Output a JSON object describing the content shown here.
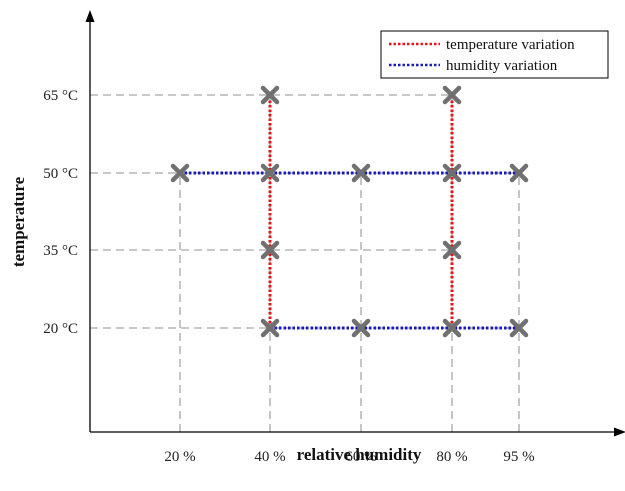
{
  "chart_data": {
    "type": "scatter",
    "xlabel": "relative humidity",
    "ylabel": "temperature",
    "x_ticks": [
      {
        "value": 20,
        "label": "20 %"
      },
      {
        "value": 40,
        "label": "40 %"
      },
      {
        "value": 60,
        "label": "60 %"
      },
      {
        "value": 80,
        "label": "80 %"
      },
      {
        "value": 95,
        "label": "95 %"
      }
    ],
    "y_ticks": [
      {
        "value": 20,
        "label": "20 °C"
      },
      {
        "value": 35,
        "label": "35 °C"
      },
      {
        "value": 50,
        "label": "50 °C"
      },
      {
        "value": 65,
        "label": "65 °C"
      }
    ],
    "points": [
      [
        40,
        65
      ],
      [
        80,
        65
      ],
      [
        20,
        50
      ],
      [
        40,
        50
      ],
      [
        60,
        50
      ],
      [
        80,
        50
      ],
      [
        95,
        50
      ],
      [
        40,
        35
      ],
      [
        80,
        35
      ],
      [
        40,
        20
      ],
      [
        60,
        20
      ],
      [
        80,
        20
      ],
      [
        95,
        20
      ]
    ],
    "series": [
      {
        "name": "temperature variation",
        "color": "#e8141b",
        "segments": [
          [
            [
              40,
              20
            ],
            [
              40,
              65
            ]
          ],
          [
            [
              80,
              20
            ],
            [
              80,
              65
            ]
          ]
        ]
      },
      {
        "name": "humidity variation",
        "color": "#1a1ab8",
        "segments": [
          [
            [
              20,
              50
            ],
            [
              95,
              50
            ]
          ],
          [
            [
              40,
              20
            ],
            [
              95,
              20
            ]
          ]
        ]
      }
    ],
    "grid": "dashed guide lines from axes to each tick value",
    "legend_position": "top-right",
    "marker": "x",
    "marker_color": "#707070"
  }
}
